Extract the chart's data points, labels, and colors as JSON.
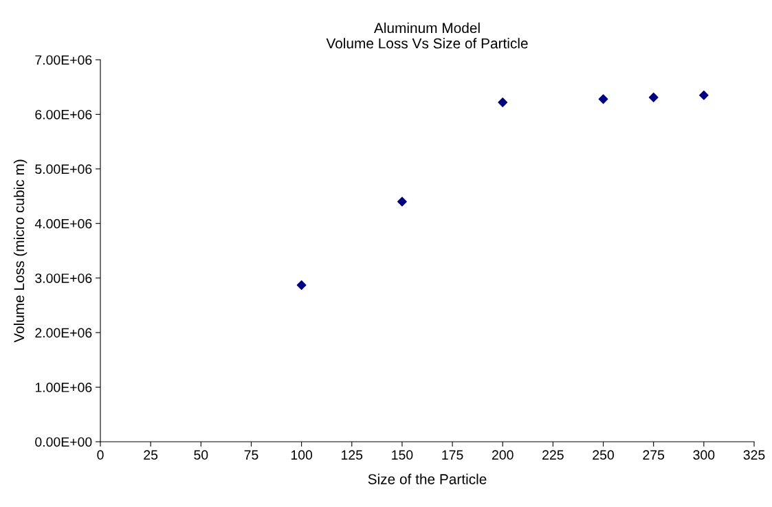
{
  "chart_data": {
    "type": "scatter",
    "title": "Aluminum Model\nVolume Loss Vs Size of Particle",
    "xlabel": "Size of the Particle",
    "ylabel": "Volume Loss (micro cubic m)",
    "x": [
      100,
      150,
      200,
      250,
      275,
      300
    ],
    "series": [
      {
        "color": "#000080",
        "values": [
          2870000,
          4400000,
          6220000,
          6280000,
          6310000,
          6350000
        ]
      }
    ],
    "marker": "diamond",
    "grid": false,
    "xlim": [
      0,
      325
    ],
    "xticks": [
      0,
      25,
      50,
      75,
      100,
      125,
      150,
      175,
      200,
      225,
      250,
      275,
      300,
      325
    ],
    "ylim": [
      0,
      7000000
    ],
    "yticks": [
      {
        "value": 0,
        "label": "0.00E+00"
      },
      {
        "value": 1000000,
        "label": "1.00E+06"
      },
      {
        "value": 2000000,
        "label": "2.00E+06"
      },
      {
        "value": 3000000,
        "label": "3.00E+06"
      },
      {
        "value": 4000000,
        "label": "4.00E+06"
      },
      {
        "value": 5000000,
        "label": "5.00E+06"
      },
      {
        "value": 6000000,
        "label": "6.00E+06"
      },
      {
        "value": 7000000,
        "label": "7.00E+06"
      }
    ]
  }
}
